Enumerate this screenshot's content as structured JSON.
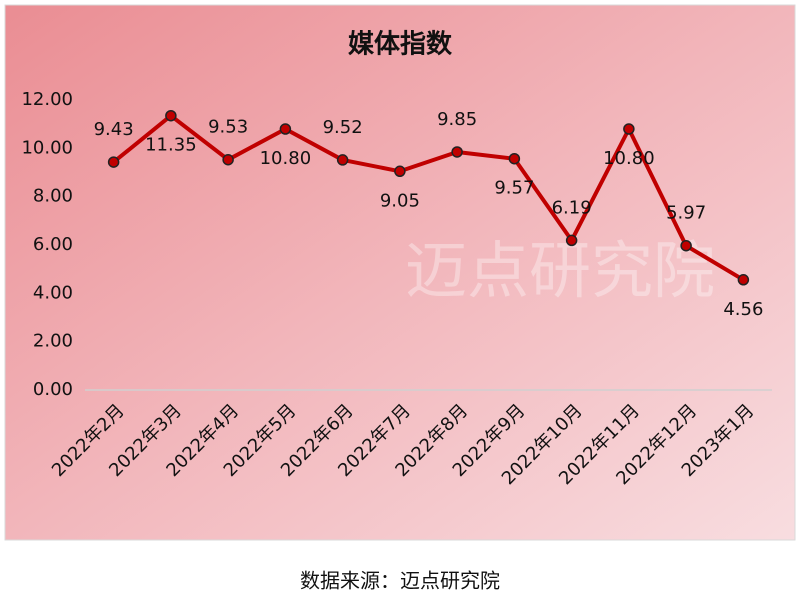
{
  "chart_data": {
    "type": "line",
    "title": "媒体指数",
    "categories": [
      "2022年2月",
      "2022年3月",
      "2022年4月",
      "2022年5月",
      "2022年6月",
      "2022年7月",
      "2022年8月",
      "2022年9月",
      "2022年10月",
      "2022年11月",
      "2022年12月",
      "2023年1月"
    ],
    "series": [
      {
        "name": "媒体指数",
        "color": "#c00000",
        "values": [
          9.43,
          11.35,
          9.53,
          10.8,
          9.52,
          9.05,
          9.85,
          9.57,
          6.19,
          10.8,
          5.97,
          4.56
        ],
        "value_labels": [
          "9.43",
          "11.35",
          "9.53",
          "10.80",
          "9.52",
          "9.05",
          "9.85",
          "9.57",
          "6.19",
          "10.80",
          "5.97",
          "4.56"
        ]
      }
    ],
    "ylim": [
      0,
      12
    ],
    "yticks": [
      {
        "value": 0,
        "label": "0.00"
      },
      {
        "value": 2,
        "label": "2.00"
      },
      {
        "value": 4,
        "label": "4.00"
      },
      {
        "value": 6,
        "label": "6.00"
      },
      {
        "value": 8,
        "label": "8.00"
      },
      {
        "value": 10,
        "label": "10.00"
      },
      {
        "value": 12,
        "label": "12.00"
      }
    ],
    "grid": false,
    "watermark": "迈点研究院",
    "source": "数据来源：迈点研究院"
  }
}
